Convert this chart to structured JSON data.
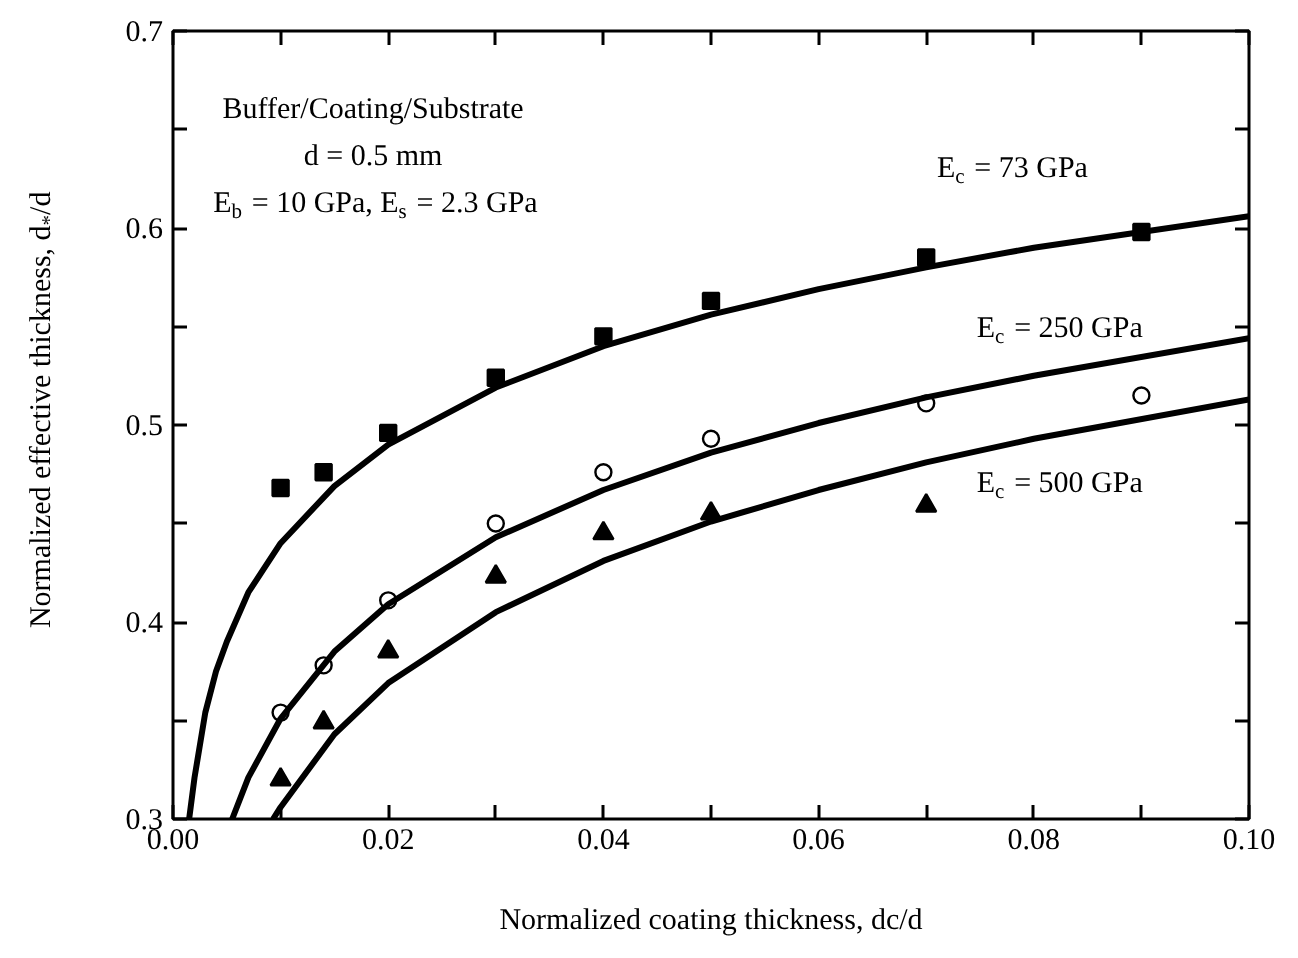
{
  "chart_data": {
    "type": "scatter",
    "xlabel": "Normalized coating thickness, dc/d",
    "ylabel": "Normalized effective thickness, d$_{*}$/d",
    "xlim": [
      0.0,
      0.1
    ],
    "ylim": [
      0.3,
      0.7
    ],
    "xticks": [
      {
        "value": 0.0,
        "label": "0.00"
      },
      {
        "value": 0.01,
        "label": null
      },
      {
        "value": 0.02,
        "label": "0.02"
      },
      {
        "value": 0.03,
        "label": null
      },
      {
        "value": 0.04,
        "label": "0.04"
      },
      {
        "value": 0.05,
        "label": null
      },
      {
        "value": 0.06,
        "label": "0.06"
      },
      {
        "value": 0.07,
        "label": null
      },
      {
        "value": 0.08,
        "label": "0.08"
      },
      {
        "value": 0.09,
        "label": null
      },
      {
        "value": 0.1,
        "label": "0.10"
      }
    ],
    "yticks": [
      0.3,
      {
        "value": 0.35,
        "label": null
      },
      0.4,
      {
        "value": 0.45,
        "label": null
      },
      0.5,
      {
        "value": 0.55,
        "label": null
      },
      0.6,
      {
        "value": 0.65,
        "label": null
      },
      0.7
    ],
    "grid": false,
    "series": [
      {
        "marker": "square",
        "color": "#000000",
        "x": [
          0.01,
          0.014,
          0.02,
          0.03,
          0.04,
          0.05,
          0.07,
          0.09
        ],
        "values": [
          0.468,
          0.476,
          0.496,
          0.524,
          0.545,
          0.563,
          0.585,
          0.598
        ]
      },
      {
        "marker": "circle",
        "color": "#000000",
        "x": [
          0.01,
          0.014,
          0.02,
          0.03,
          0.04,
          0.05,
          0.07,
          0.09
        ],
        "values": [
          0.354,
          0.378,
          0.411,
          0.45,
          0.476,
          0.493,
          0.511,
          0.515
        ]
      },
      {
        "marker": "triangle",
        "color": "#000000",
        "x": [
          0.01,
          0.014,
          0.02,
          0.03,
          0.04,
          0.05,
          0.07
        ],
        "values": [
          0.32,
          0.349,
          0.385,
          0.423,
          0.445,
          0.455,
          0.459
        ]
      },
      {
        "type": "line",
        "color": "#000000",
        "x": [
          0.0015,
          0.002,
          0.003,
          0.004,
          0.005,
          0.007,
          0.01,
          0.015,
          0.02,
          0.03,
          0.04,
          0.05,
          0.06,
          0.07,
          0.08,
          0.1
        ],
        "values": [
          0.3,
          0.321,
          0.354,
          0.375,
          0.39,
          0.415,
          0.44,
          0.469,
          0.49,
          0.519,
          0.54,
          0.556,
          0.569,
          0.58,
          0.59,
          0.606
        ]
      },
      {
        "type": "line",
        "color": "#000000",
        "x": [
          0.0055,
          0.007,
          0.01,
          0.015,
          0.02,
          0.03,
          0.04,
          0.05,
          0.06,
          0.07,
          0.08,
          0.1
        ],
        "values": [
          0.3,
          0.321,
          0.351,
          0.385,
          0.409,
          0.443,
          0.467,
          0.486,
          0.501,
          0.514,
          0.525,
          0.544
        ]
      },
      {
        "type": "line",
        "color": "#000000",
        "x": [
          0.0093,
          0.01,
          0.015,
          0.02,
          0.03,
          0.04,
          0.05,
          0.06,
          0.07,
          0.08,
          0.1
        ],
        "values": [
          0.3,
          0.306,
          0.343,
          0.369,
          0.405,
          0.431,
          0.451,
          0.467,
          0.481,
          0.493,
          0.513
        ]
      }
    ],
    "annotations": [
      "Buffer/Coating/Substrate",
      "d = 0.5 mm",
      "E$_{b}$ = 10 GPa, E$_{s}$ = 2.3 GPa",
      "E$_{c}$ =  73 GPa",
      "E$_{c}$ = 250 GPa",
      "E$_{c}$ = 500 GPa"
    ]
  }
}
